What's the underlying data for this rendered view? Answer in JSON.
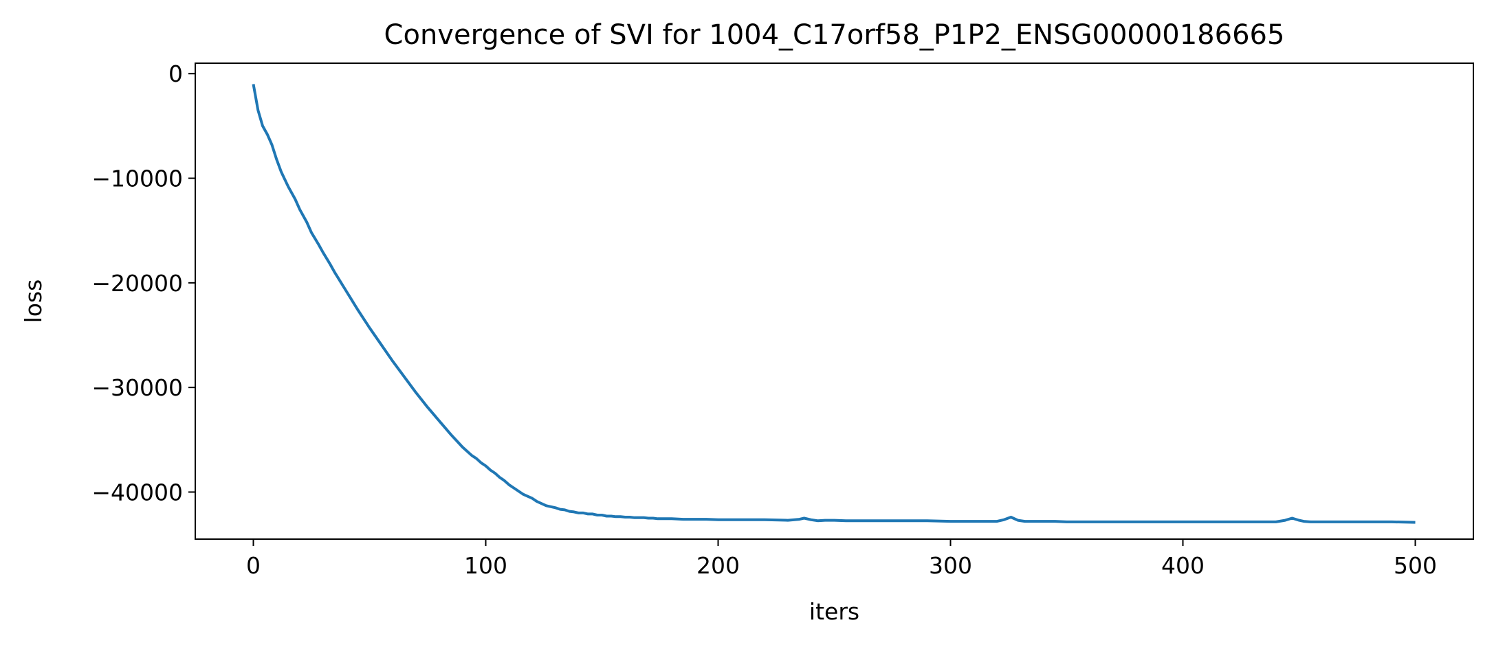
{
  "chart_data": {
    "type": "line",
    "title": "Convergence of SVI for 1004_C17orf58_P1P2_ENSG00000186665",
    "xlabel": "iters",
    "ylabel": "loss",
    "xlim": [
      -25,
      525
    ],
    "ylim": [
      -44500,
      1000
    ],
    "x_ticks": [
      0,
      100,
      200,
      300,
      400,
      500
    ],
    "x_tick_labels": [
      "0",
      "100",
      "200",
      "300",
      "400",
      "500"
    ],
    "y_ticks": [
      0,
      -10000,
      -20000,
      -30000,
      -40000
    ],
    "y_tick_labels": [
      "0",
      "−10000",
      "−20000",
      "−30000",
      "−40000"
    ],
    "grid": false,
    "legend": "none",
    "line_color": "#1f77b4",
    "series": [
      {
        "x": [
          0,
          2,
          4,
          6,
          8,
          10,
          12,
          15,
          18,
          20,
          23,
          25,
          28,
          30,
          33,
          35,
          40,
          45,
          50,
          55,
          60,
          65,
          70,
          75,
          80,
          85,
          90,
          94,
          96,
          98,
          100,
          102,
          104,
          106,
          108,
          110,
          112,
          114,
          116,
          118,
          120,
          122,
          124,
          126,
          128,
          130,
          132,
          134,
          136,
          138,
          140,
          142,
          144,
          146,
          148,
          150,
          152,
          154,
          156,
          158,
          160,
          162,
          164,
          166,
          168,
          170,
          172,
          174,
          176,
          178,
          180,
          185,
          190,
          195,
          200,
          210,
          220,
          230,
          235,
          237,
          240,
          243,
          246,
          250,
          255,
          260,
          270,
          280,
          290,
          300,
          310,
          320,
          323,
          326,
          329,
          332,
          336,
          340,
          345,
          350,
          360,
          380,
          400,
          420,
          440,
          444,
          447,
          450,
          452,
          455,
          458,
          462,
          466,
          470,
          480,
          490,
          500
        ],
        "y": [
          -1000,
          -3500,
          -5000,
          -5800,
          -6800,
          -8200,
          -9400,
          -10800,
          -12000,
          -13000,
          -14200,
          -15200,
          -16300,
          -17100,
          -18200,
          -19000,
          -20800,
          -22600,
          -24300,
          -25900,
          -27500,
          -29000,
          -30500,
          -31900,
          -33200,
          -34500,
          -35700,
          -36500,
          -36800,
          -37200,
          -37500,
          -37900,
          -38200,
          -38600,
          -38900,
          -39300,
          -39600,
          -39900,
          -40200,
          -40400,
          -40600,
          -40900,
          -41100,
          -41300,
          -41400,
          -41500,
          -41650,
          -41700,
          -41850,
          -41900,
          -42000,
          -42000,
          -42100,
          -42100,
          -42200,
          -42200,
          -42300,
          -42300,
          -42350,
          -42350,
          -42400,
          -42400,
          -42450,
          -42450,
          -42450,
          -42500,
          -42500,
          -42550,
          -42550,
          -42550,
          -42550,
          -42600,
          -42600,
          -42600,
          -42650,
          -42650,
          -42650,
          -42700,
          -42600,
          -42500,
          -42650,
          -42750,
          -42700,
          -42700,
          -42750,
          -42750,
          -42750,
          -42750,
          -42750,
          -42800,
          -42800,
          -42800,
          -42650,
          -42400,
          -42700,
          -42800,
          -42800,
          -42800,
          -42800,
          -42850,
          -42850,
          -42850,
          -42850,
          -42850,
          -42850,
          -42700,
          -42500,
          -42700,
          -42800,
          -42850,
          -42850,
          -42850,
          -42850,
          -42850,
          -42850,
          -42850,
          -42900
        ]
      }
    ]
  }
}
